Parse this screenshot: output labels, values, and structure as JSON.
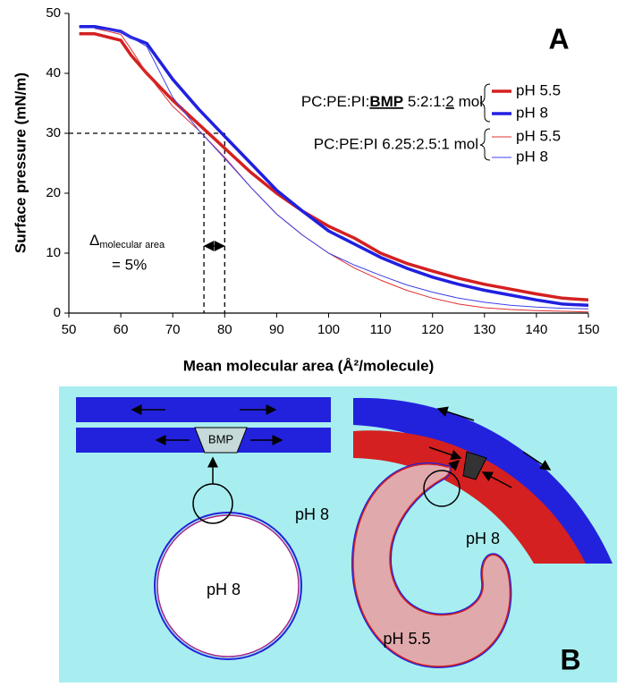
{
  "chart_data": {
    "type": "line",
    "panel": "A",
    "xlabel": "Mean molecular area (Å²/molecule)",
    "ylabel": "Surface pressure (mN/m)",
    "x": [
      52,
      55,
      60,
      62,
      65,
      70,
      75,
      80,
      85,
      90,
      95,
      100,
      105,
      110,
      115,
      120,
      125,
      130,
      135,
      140,
      145,
      150
    ],
    "series": [
      {
        "name": "pH 5.5",
        "color": "#d42020",
        "width": 3.5,
        "values": [
          46.6,
          46.6,
          45.5,
          43,
          40,
          35.5,
          31.5,
          27.5,
          23.5,
          20,
          17,
          14.5,
          12.5,
          10,
          8.3,
          7,
          5.8,
          4.8,
          4,
          3.2,
          2.5,
          2.2
        ]
      },
      {
        "name": "pH 8",
        "color": "#2020e0",
        "width": 3.5,
        "values": [
          47.8,
          47.8,
          47,
          46,
          45,
          39,
          34,
          29.5,
          25,
          20.5,
          17,
          13.7,
          11.5,
          9.3,
          7.5,
          6,
          4.8,
          3.8,
          3,
          2.2,
          1.5,
          1.3
        ]
      },
      {
        "name": "pH 5.5",
        "color": "#e03030",
        "width": 1,
        "values": [
          null,
          47.5,
          46.5,
          44,
          40,
          34.5,
          30.5,
          26,
          21,
          16.5,
          13,
          10,
          7.5,
          5.5,
          3.8,
          2.5,
          1.5,
          0.9,
          0.6,
          0.4,
          0.3,
          0.2
        ]
      },
      {
        "name": "pH 8",
        "color": "#4040e8",
        "width": 1,
        "values": [
          null,
          47.5,
          47,
          46,
          44.5,
          36,
          30.5,
          25.8,
          21,
          16.5,
          13,
          10,
          8,
          6.3,
          4.7,
          3.5,
          2.5,
          1.8,
          1.3,
          1,
          0.8,
          0.7
        ]
      }
    ],
    "legend_groups": [
      {
        "label_parts": [
          "PC:PE:PI:",
          "BMP",
          " 5:2:1:",
          "2",
          " mol"
        ]
      },
      {
        "label": "PC:PE:PI 6.25:2.5:1 mol"
      }
    ],
    "annotations": {
      "y_ref": 30,
      "x_refs": [
        76,
        80
      ],
      "delta_symbol": "Δ",
      "delta_subscript": "molecular area",
      "delta_text": "= 5%"
    },
    "xlim": [
      50,
      150
    ],
    "ylim": [
      0,
      50
    ],
    "xticks": [
      50,
      60,
      70,
      80,
      90,
      100,
      110,
      120,
      130,
      140,
      150
    ],
    "yticks": [
      0,
      10,
      20,
      30,
      40,
      50
    ]
  },
  "diagram": {
    "panel": "B",
    "labels": {
      "bmp": "BMP",
      "ph_outside": "pH 8",
      "ph_circle": "pH 8",
      "ph_right": "pH 8",
      "ph_crescent": "pH 5.5"
    }
  }
}
